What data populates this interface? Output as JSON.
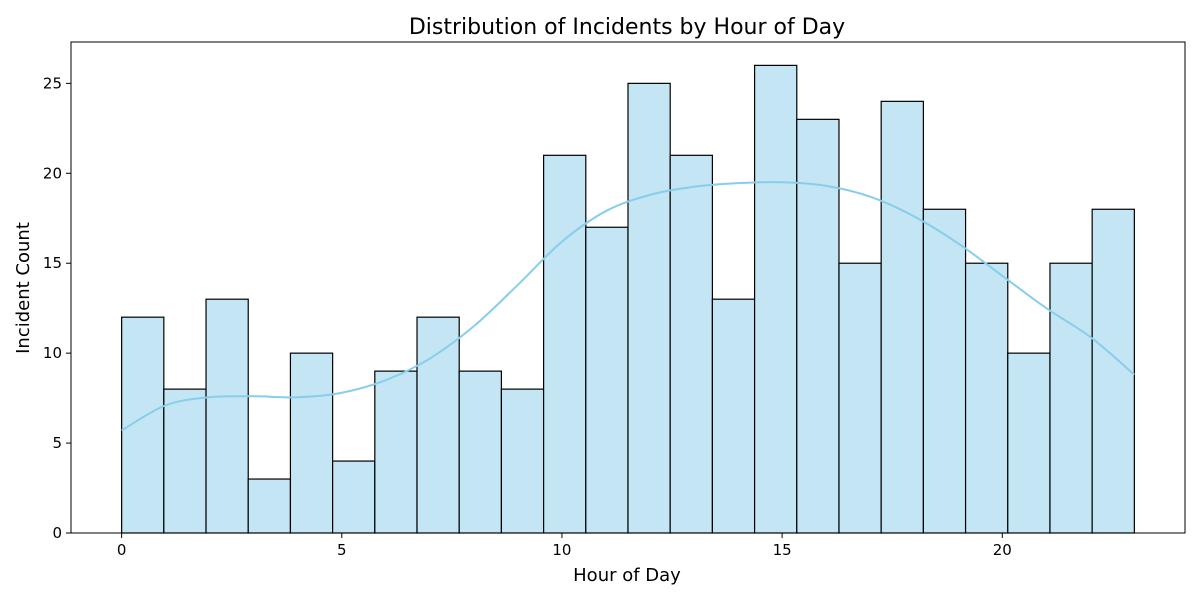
{
  "chart_data": {
    "type": "bar",
    "title": "Distribution of Incidents by Hour of Day",
    "xlabel": "Hour of Day",
    "ylabel": "Incident Count",
    "xlim": [
      -1.15,
      24.15
    ],
    "ylim": [
      0,
      27.3
    ],
    "xticks": [
      0,
      5,
      10,
      15,
      20
    ],
    "yticks": [
      0,
      5,
      10,
      15,
      20,
      25
    ],
    "bin_start": 0,
    "bin_end": 23,
    "values": [
      12,
      8,
      13,
      3,
      10,
      4,
      9,
      12,
      9,
      8,
      21,
      17,
      25,
      21,
      13,
      26,
      23,
      15,
      24,
      18,
      15,
      10,
      15,
      18
    ],
    "kde": {
      "x": [
        0,
        1,
        2,
        3,
        4,
        5,
        6,
        7,
        8,
        9,
        10,
        11,
        12,
        13,
        14,
        15,
        16,
        17,
        18,
        19,
        20,
        21,
        22,
        23
      ],
      "y": [
        5.7,
        7.1,
        7.55,
        7.6,
        7.55,
        7.8,
        8.5,
        9.7,
        11.5,
        13.8,
        16.2,
        17.9,
        18.8,
        19.25,
        19.45,
        19.5,
        19.3,
        18.7,
        17.6,
        16.1,
        14.3,
        12.5,
        10.9,
        8.8
      ]
    },
    "bar_color": "#c3e5f4",
    "kde_color": "#87ceeb",
    "grid": false,
    "legend": "none"
  }
}
